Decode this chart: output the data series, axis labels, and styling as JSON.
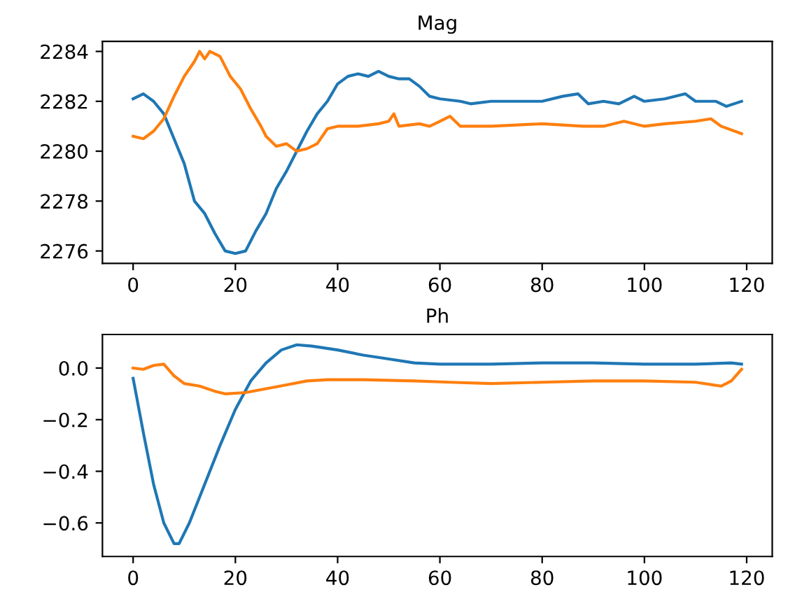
{
  "chart_data": [
    {
      "type": "line",
      "title": "Mag",
      "xlim": [
        -6,
        125
      ],
      "ylim": [
        2275.5,
        2284.4
      ],
      "xticks": [
        0,
        20,
        40,
        60,
        80,
        100,
        120
      ],
      "yticks": [
        2276,
        2278,
        2280,
        2282,
        2284
      ],
      "series": [
        {
          "color": "#1f77b4",
          "x": [
            0,
            2,
            4,
            6,
            8,
            10,
            12,
            14,
            16,
            18,
            20,
            22,
            24,
            26,
            28,
            30,
            32,
            34,
            36,
            38,
            40,
            42,
            44,
            46,
            48,
            50,
            52,
            54,
            56,
            58,
            60,
            64,
            66,
            70,
            80,
            84,
            87,
            89,
            92,
            95,
            98,
            100,
            104,
            108,
            110,
            114,
            116,
            119
          ],
          "values": [
            2282.1,
            2282.3,
            2282.0,
            2281.5,
            2280.5,
            2279.5,
            2278.0,
            2277.5,
            2276.7,
            2276.0,
            2275.9,
            2276.0,
            2276.8,
            2277.5,
            2278.5,
            2279.2,
            2280.0,
            2280.8,
            2281.5,
            2282.0,
            2282.7,
            2283.0,
            2283.1,
            2283.0,
            2283.2,
            2283.0,
            2282.9,
            2282.9,
            2282.6,
            2282.2,
            2282.1,
            2282.0,
            2281.9,
            2282.0,
            2282.0,
            2282.2,
            2282.3,
            2281.9,
            2282.0,
            2281.9,
            2282.2,
            2282.0,
            2282.1,
            2282.3,
            2282.0,
            2282.0,
            2281.8,
            2282.0
          ]
        },
        {
          "color": "#ff7f0e",
          "x": [
            0,
            2,
            4,
            6,
            8,
            10,
            12,
            13,
            14,
            15,
            17,
            19,
            21,
            23,
            25,
            26,
            28,
            30,
            32,
            34,
            36,
            38,
            40,
            44,
            48,
            50,
            51,
            52,
            56,
            58,
            60,
            62,
            64,
            70,
            80,
            88,
            92,
            96,
            100,
            104,
            110,
            113,
            115,
            119
          ],
          "values": [
            2280.6,
            2280.5,
            2280.8,
            2281.3,
            2282.2,
            2283.0,
            2283.6,
            2284.0,
            2283.7,
            2284.0,
            2283.8,
            2283.0,
            2282.5,
            2281.7,
            2281.0,
            2280.6,
            2280.2,
            2280.3,
            2280.0,
            2280.1,
            2280.3,
            2280.9,
            2281.0,
            2281.0,
            2281.1,
            2281.2,
            2281.5,
            2281.0,
            2281.1,
            2281.0,
            2281.2,
            2281.4,
            2281.0,
            2281.0,
            2281.1,
            2281.0,
            2281.0,
            2281.2,
            2281.0,
            2281.1,
            2281.2,
            2281.3,
            2281.0,
            2280.7
          ]
        }
      ]
    },
    {
      "type": "line",
      "title": "Ph",
      "xlim": [
        -6,
        125
      ],
      "ylim": [
        -0.73,
        0.13
      ],
      "xticks": [
        0,
        20,
        40,
        60,
        80,
        100,
        120
      ],
      "yticks": [
        {
          "value": -0.6,
          "label": "−0.6"
        },
        {
          "value": -0.4,
          "label": "−0.4"
        },
        {
          "value": -0.2,
          "label": "−0.2"
        },
        {
          "value": 0.0,
          "label": "0.0"
        }
      ],
      "series": [
        {
          "color": "#1f77b4",
          "x": [
            0,
            2,
            4,
            6,
            8,
            9,
            11,
            14,
            17,
            20,
            23,
            26,
            29,
            32,
            35,
            40,
            45,
            50,
            55,
            60,
            70,
            80,
            90,
            100,
            110,
            117,
            119
          ],
          "values": [
            -0.04,
            -0.25,
            -0.45,
            -0.6,
            -0.68,
            -0.68,
            -0.6,
            -0.45,
            -0.3,
            -0.16,
            -0.05,
            0.02,
            0.07,
            0.09,
            0.085,
            0.07,
            0.05,
            0.035,
            0.02,
            0.015,
            0.015,
            0.02,
            0.02,
            0.015,
            0.015,
            0.02,
            0.015
          ]
        },
        {
          "color": "#ff7f0e",
          "x": [
            0,
            2,
            4,
            6,
            8,
            10,
            13,
            16,
            18,
            22,
            26,
            30,
            34,
            38,
            45,
            55,
            62,
            70,
            80,
            90,
            100,
            110,
            115,
            117,
            119
          ],
          "values": [
            0.0,
            -0.005,
            0.01,
            0.015,
            -0.03,
            -0.06,
            -0.07,
            -0.09,
            -0.1,
            -0.095,
            -0.08,
            -0.065,
            -0.05,
            -0.045,
            -0.045,
            -0.05,
            -0.055,
            -0.06,
            -0.055,
            -0.05,
            -0.05,
            -0.055,
            -0.07,
            -0.05,
            -0.005
          ]
        }
      ]
    }
  ]
}
